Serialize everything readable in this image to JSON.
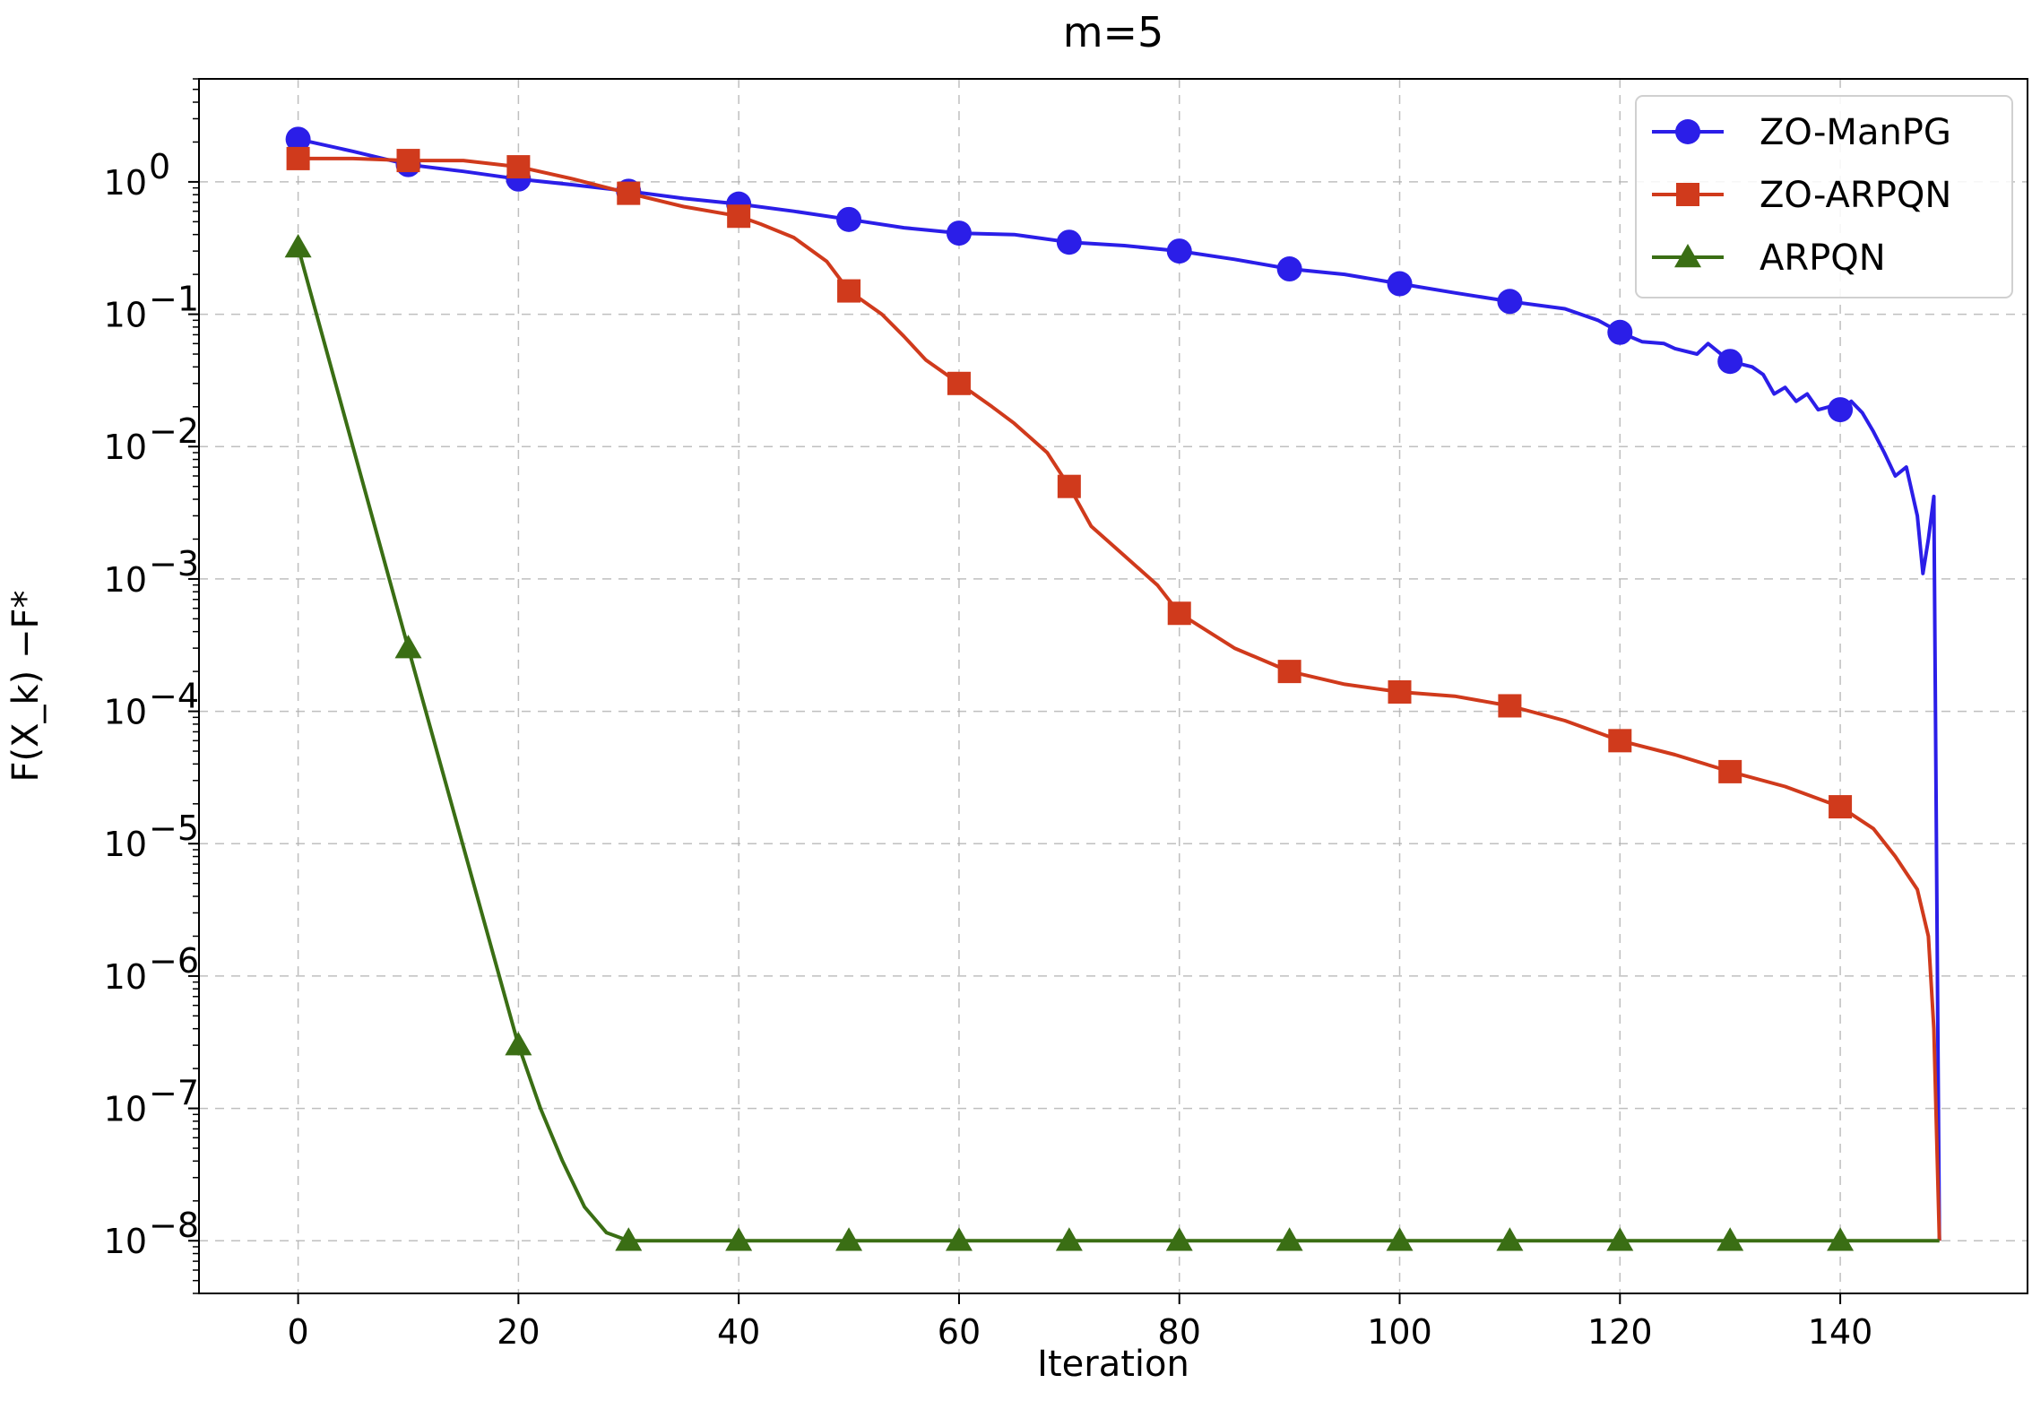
{
  "chart_data": {
    "type": "line",
    "title": "m=5",
    "xlabel": "Iteration",
    "ylabel": "F(X_k) −F*",
    "yscale": "log",
    "xlim": [
      -9,
      157
    ],
    "ylim": [
      4e-09,
      6
    ],
    "x_ticks": [
      0,
      20,
      40,
      60,
      80,
      100,
      120,
      140
    ],
    "y_ticks": [
      {
        "value": 1,
        "base": "10",
        "exp": "0"
      },
      {
        "value": 0.1,
        "base": "10",
        "exp": "−1"
      },
      {
        "value": 0.01,
        "base": "10",
        "exp": "−2"
      },
      {
        "value": 0.001,
        "base": "10",
        "exp": "−3"
      },
      {
        "value": 0.0001,
        "base": "10",
        "exp": "−4"
      },
      {
        "value": 1e-05,
        "base": "10",
        "exp": "−5"
      },
      {
        "value": 1e-06,
        "base": "10",
        "exp": "−6"
      },
      {
        "value": 1e-07,
        "base": "10",
        "exp": "−7"
      },
      {
        "value": 1e-08,
        "base": "10",
        "exp": "−8"
      }
    ],
    "grid": true,
    "legend_position": "top-right",
    "series": [
      {
        "name": "ZO-ManPG",
        "color": "#2b1ee8",
        "marker": "circle",
        "line": [
          [
            0,
            2.1
          ],
          [
            5,
            1.7
          ],
          [
            10,
            1.35
          ],
          [
            15,
            1.2
          ],
          [
            20,
            1.05
          ],
          [
            25,
            0.95
          ],
          [
            30,
            0.85
          ],
          [
            35,
            0.75
          ],
          [
            40,
            0.68
          ],
          [
            45,
            0.6
          ],
          [
            50,
            0.52
          ],
          [
            55,
            0.45
          ],
          [
            60,
            0.41
          ],
          [
            65,
            0.4
          ],
          [
            70,
            0.35
          ],
          [
            75,
            0.33
          ],
          [
            80,
            0.3
          ],
          [
            85,
            0.26
          ],
          [
            90,
            0.22
          ],
          [
            95,
            0.2
          ],
          [
            100,
            0.17
          ],
          [
            105,
            0.145
          ],
          [
            110,
            0.125
          ],
          [
            115,
            0.11
          ],
          [
            118,
            0.09
          ],
          [
            120,
            0.073
          ],
          [
            122,
            0.062
          ],
          [
            124,
            0.06
          ],
          [
            125,
            0.055
          ],
          [
            127,
            0.05
          ],
          [
            128,
            0.06
          ],
          [
            130,
            0.044
          ],
          [
            132,
            0.04
          ],
          [
            133,
            0.035
          ],
          [
            134,
            0.025
          ],
          [
            135,
            0.028
          ],
          [
            136,
            0.022
          ],
          [
            137,
            0.025
          ],
          [
            138,
            0.019
          ],
          [
            139,
            0.02
          ],
          [
            140,
            0.019
          ],
          [
            141,
            0.022
          ],
          [
            142,
            0.018
          ],
          [
            143,
            0.013
          ],
          [
            144,
            0.009
          ],
          [
            145,
            0.006
          ],
          [
            146,
            0.007
          ],
          [
            147,
            0.003
          ],
          [
            147.5,
            0.0011
          ],
          [
            148,
            0.002
          ],
          [
            148.5,
            0.0042
          ],
          [
            149,
            1e-08
          ]
        ],
        "markers": [
          [
            0,
            2.1
          ],
          [
            10,
            1.35
          ],
          [
            20,
            1.05
          ],
          [
            30,
            0.85
          ],
          [
            40,
            0.68
          ],
          [
            50,
            0.52
          ],
          [
            60,
            0.41
          ],
          [
            70,
            0.35
          ],
          [
            80,
            0.3
          ],
          [
            90,
            0.22
          ],
          [
            100,
            0.17
          ],
          [
            110,
            0.125
          ],
          [
            120,
            0.073
          ],
          [
            130,
            0.044
          ],
          [
            140,
            0.019
          ]
        ]
      },
      {
        "name": "ZO-ARPQN",
        "color": "#d03a1c",
        "marker": "square",
        "line": [
          [
            0,
            1.5
          ],
          [
            5,
            1.5
          ],
          [
            10,
            1.45
          ],
          [
            15,
            1.45
          ],
          [
            20,
            1.3
          ],
          [
            25,
            1.05
          ],
          [
            30,
            0.82
          ],
          [
            35,
            0.65
          ],
          [
            40,
            0.55
          ],
          [
            42,
            0.48
          ],
          [
            45,
            0.38
          ],
          [
            48,
            0.25
          ],
          [
            50,
            0.15
          ],
          [
            53,
            0.1
          ],
          [
            55,
            0.068
          ],
          [
            57,
            0.045
          ],
          [
            60,
            0.03
          ],
          [
            63,
            0.02
          ],
          [
            65,
            0.015
          ],
          [
            68,
            0.009
          ],
          [
            70,
            0.005
          ],
          [
            72,
            0.0025
          ],
          [
            75,
            0.0015
          ],
          [
            78,
            0.0009
          ],
          [
            80,
            0.00055
          ],
          [
            85,
            0.0003
          ],
          [
            90,
            0.0002
          ],
          [
            95,
            0.00016
          ],
          [
            100,
            0.00014
          ],
          [
            105,
            0.00013
          ],
          [
            110,
            0.00011
          ],
          [
            115,
            8.5e-05
          ],
          [
            120,
            6e-05
          ],
          [
            125,
            4.7e-05
          ],
          [
            130,
            3.5e-05
          ],
          [
            135,
            2.7e-05
          ],
          [
            140,
            1.9e-05
          ],
          [
            143,
            1.3e-05
          ],
          [
            145,
            8e-06
          ],
          [
            146,
            6e-06
          ],
          [
            147,
            4.5e-06
          ],
          [
            148,
            2e-06
          ],
          [
            148.5,
            4e-07
          ],
          [
            149,
            1e-08
          ]
        ],
        "markers": [
          [
            0,
            1.5
          ],
          [
            10,
            1.45
          ],
          [
            20,
            1.3
          ],
          [
            30,
            0.82
          ],
          [
            40,
            0.55
          ],
          [
            50,
            0.15
          ],
          [
            60,
            0.03
          ],
          [
            70,
            0.005
          ],
          [
            80,
            0.00055
          ],
          [
            90,
            0.0002
          ],
          [
            100,
            0.00014
          ],
          [
            110,
            0.00011
          ],
          [
            120,
            6e-05
          ],
          [
            130,
            3.5e-05
          ],
          [
            140,
            1.9e-05
          ]
        ]
      },
      {
        "name": "ARPQN",
        "color": "#3a6e14",
        "marker": "triangle",
        "line": [
          [
            0,
            0.32
          ],
          [
            10,
            0.0003
          ],
          [
            20,
            3e-07
          ],
          [
            22,
            1e-07
          ],
          [
            24,
            4e-08
          ],
          [
            26,
            1.8e-08
          ],
          [
            28,
            1.15e-08
          ],
          [
            30,
            1e-08
          ],
          [
            40,
            1e-08
          ],
          [
            50,
            1e-08
          ],
          [
            60,
            1e-08
          ],
          [
            70,
            1e-08
          ],
          [
            80,
            1e-08
          ],
          [
            90,
            1e-08
          ],
          [
            100,
            1e-08
          ],
          [
            110,
            1e-08
          ],
          [
            120,
            1e-08
          ],
          [
            130,
            1e-08
          ],
          [
            140,
            1e-08
          ],
          [
            149,
            1e-08
          ]
        ],
        "markers": [
          [
            0,
            0.32
          ],
          [
            10,
            0.0003
          ],
          [
            20,
            3e-07
          ],
          [
            30,
            1e-08
          ],
          [
            40,
            1e-08
          ],
          [
            50,
            1e-08
          ],
          [
            60,
            1e-08
          ],
          [
            70,
            1e-08
          ],
          [
            80,
            1e-08
          ],
          [
            90,
            1e-08
          ],
          [
            100,
            1e-08
          ],
          [
            110,
            1e-08
          ],
          [
            120,
            1e-08
          ],
          [
            130,
            1e-08
          ],
          [
            140,
            1e-08
          ]
        ]
      }
    ]
  }
}
